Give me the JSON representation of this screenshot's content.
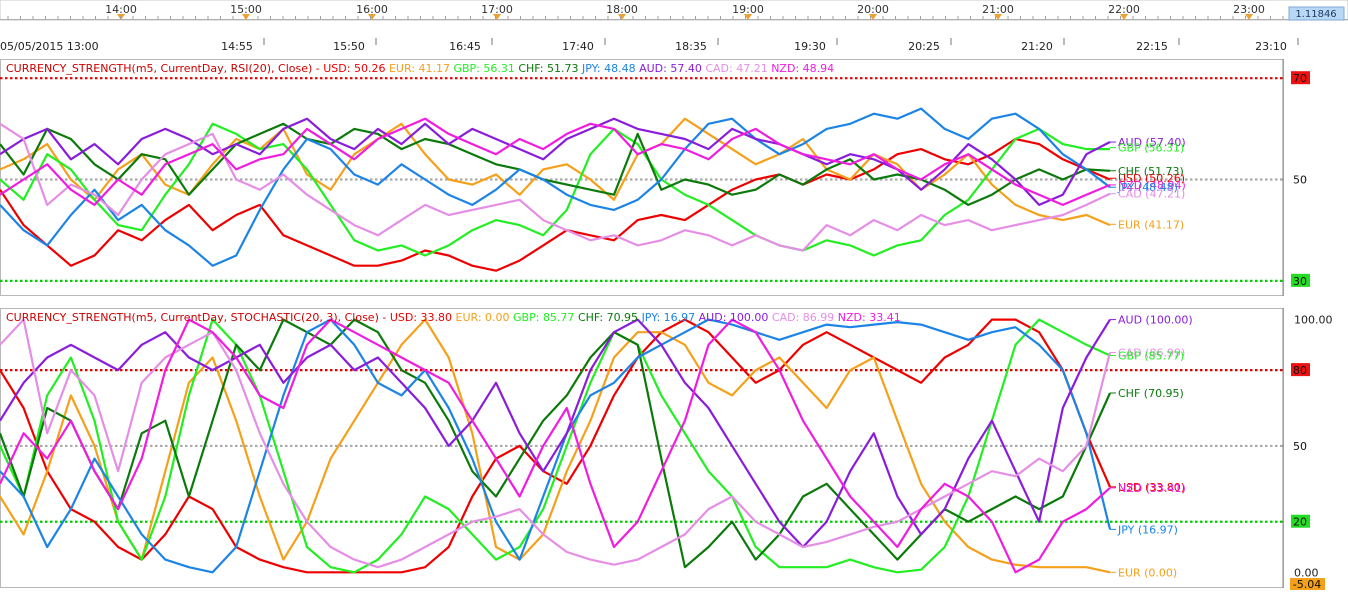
{
  "timeline": {
    "ticks": [
      "14:00",
      "15:00",
      "16:00",
      "17:00",
      "18:00",
      "19:00",
      "20:00",
      "21:00",
      "22:00",
      "23:00"
    ],
    "price_badge": "1.11846"
  },
  "time_axis": {
    "labels": [
      "05/05/2015 13:00",
      "14:55",
      "15:50",
      "16:45",
      "17:40",
      "18:35",
      "19:30",
      "20:25",
      "21:20",
      "22:15",
      "23:10"
    ]
  },
  "colors": {
    "USD": "#ee0000",
    "EUR": "#f5a01a",
    "GBP": "#22ee22",
    "CHF": "#0b7a0b",
    "JPY": "#1c84e6",
    "AUD": "#8a1cdc",
    "CAD": "#e58ee5",
    "NZD": "#f01ce0",
    "overbought_line": "#dd0000",
    "oversold_line": "#00cc00",
    "mid_line": "#aaaaaa"
  },
  "chart_data": [
    {
      "type": "line",
      "title": "CURRENCY_STRENGTH(m5, CurrentDay, RSI(20), Close)",
      "header_values": [
        {
          "label": "USD: 50.26",
          "key": "USD"
        },
        {
          "label": "EUR: 41.17",
          "key": "EUR"
        },
        {
          "label": "GBP: 56.31",
          "key": "GBP"
        },
        {
          "label": "CHF: 51.73",
          "key": "CHF"
        },
        {
          "label": "JPY: 48.48",
          "key": "JPY"
        },
        {
          "label": "AUD: 57.40",
          "key": "AUD"
        },
        {
          "label": "CAD: 47.21",
          "key": "CAD"
        },
        {
          "label": "NZD: 48.94",
          "key": "NZD"
        }
      ],
      "ylim": [
        28,
        73
      ],
      "levels": [
        {
          "value": 70,
          "label": "70",
          "kind": "overbought"
        },
        {
          "value": 50,
          "label": "50",
          "kind": "mid"
        },
        {
          "value": 30,
          "label": "30",
          "kind": "oversold"
        }
      ],
      "end_labels": [
        {
          "key": "AUD",
          "text": "AUD (57.40)",
          "value": 57.4
        },
        {
          "key": "GBP",
          "text": "GBP (56.31)",
          "value": 56.31
        },
        {
          "key": "CHF",
          "text": "CHF (51.73)",
          "value": 51.73
        },
        {
          "key": "USD",
          "text": "USD (50.26)",
          "value": 50.26
        },
        {
          "key": "NZD",
          "text": "NZD (48.94)",
          "value": 48.94
        },
        {
          "key": "JPY",
          "text": "JPY (48.48)",
          "value": 48.48
        },
        {
          "key": "CAD",
          "text": "CAD (47.21)",
          "value": 47.21
        },
        {
          "key": "EUR",
          "text": "EUR (41.17)",
          "value": 41.17
        }
      ],
      "series": [
        {
          "name": "USD",
          "values": [
            48,
            41,
            37,
            33,
            35,
            40,
            38,
            42,
            45,
            40,
            43,
            45,
            39,
            37,
            35,
            33,
            33,
            34,
            36,
            35,
            33,
            32,
            34,
            37,
            40,
            39,
            38,
            42,
            43,
            42,
            45,
            48,
            50,
            51,
            49,
            51,
            50,
            52,
            55,
            56,
            54,
            53,
            55,
            58,
            57,
            54,
            52,
            50
          ]
        },
        {
          "name": "EUR",
          "values": [
            52,
            54,
            57,
            50,
            46,
            52,
            55,
            49,
            47,
            53,
            58,
            56,
            60,
            51,
            48,
            55,
            58,
            61,
            55,
            50,
            49,
            51,
            47,
            52,
            53,
            50,
            46,
            55,
            57,
            62,
            59,
            56,
            53,
            55,
            58,
            52,
            50,
            55,
            53,
            48,
            51,
            55,
            49,
            45,
            43,
            42,
            43,
            41
          ]
        },
        {
          "name": "GBP",
          "values": [
            50,
            46,
            55,
            52,
            46,
            41,
            40,
            47,
            53,
            61,
            59,
            56,
            57,
            52,
            45,
            38,
            36,
            37,
            35,
            37,
            40,
            42,
            41,
            39,
            44,
            55,
            60,
            57,
            50,
            47,
            45,
            42,
            39,
            37,
            36,
            38,
            37,
            35,
            37,
            38,
            43,
            46,
            52,
            58,
            60,
            57,
            56,
            56
          ]
        },
        {
          "name": "CHF",
          "values": [
            57,
            51,
            60,
            58,
            53,
            50,
            55,
            54,
            47,
            52,
            57,
            59,
            61,
            58,
            57,
            60,
            59,
            56,
            58,
            57,
            55,
            53,
            52,
            50,
            49,
            48,
            47,
            59,
            48,
            50,
            49,
            47,
            48,
            51,
            49,
            52,
            54,
            50,
            51,
            50,
            48,
            45,
            47,
            50,
            52,
            50,
            52,
            51.73
          ]
        },
        {
          "name": "JPY",
          "values": [
            45,
            40,
            37,
            43,
            48,
            42,
            45,
            40,
            37,
            33,
            35,
            44,
            52,
            58,
            56,
            51,
            49,
            53,
            50,
            47,
            45,
            48,
            52,
            50,
            47,
            45,
            44,
            46,
            50,
            56,
            61,
            62,
            58,
            55,
            57,
            60,
            61,
            63,
            62,
            64,
            60,
            58,
            62,
            63,
            60,
            55,
            52,
            48.48
          ]
        },
        {
          "name": "AUD",
          "values": [
            55,
            58,
            60,
            54,
            57,
            53,
            58,
            60,
            58,
            55,
            57,
            55,
            60,
            62,
            58,
            56,
            60,
            57,
            61,
            57,
            60,
            58,
            56,
            54,
            58,
            60,
            62,
            60,
            59,
            58,
            56,
            60,
            58,
            57,
            55,
            53,
            55,
            54,
            52,
            48,
            52,
            57,
            54,
            50,
            45,
            47,
            55,
            57.4
          ]
        },
        {
          "name": "CAD",
          "values": [
            61,
            58,
            45,
            49,
            47,
            43,
            50,
            55,
            57,
            59,
            50,
            48,
            51,
            47,
            44,
            41,
            39,
            42,
            45,
            43,
            44,
            45,
            46,
            42,
            40,
            38,
            39,
            37,
            38,
            40,
            39,
            37,
            39,
            37,
            36,
            41,
            39,
            42,
            40,
            43,
            41,
            42,
            40,
            41,
            42,
            43,
            45,
            47.21
          ]
        },
        {
          "name": "NZD",
          "values": [
            47,
            50,
            53,
            48,
            45,
            50,
            47,
            53,
            55,
            57,
            52,
            54,
            55,
            60,
            57,
            54,
            58,
            60,
            62,
            59,
            57,
            55,
            58,
            56,
            59,
            61,
            60,
            55,
            57,
            56,
            54,
            58,
            60,
            57,
            55,
            54,
            53,
            55,
            52,
            50,
            53,
            55,
            52,
            49,
            47,
            45,
            47,
            48.94
          ]
        }
      ]
    },
    {
      "type": "line",
      "title": "CURRENCY_STRENGTH(m5, CurrentDay, STOCHASTIC(20, 3), Close)",
      "header_values": [
        {
          "label": "USD: 33.80",
          "key": "USD"
        },
        {
          "label": "EUR: 0.00",
          "key": "EUR"
        },
        {
          "label": "GBP: 85.77",
          "key": "GBP"
        },
        {
          "label": "CHF: 70.95",
          "key": "CHF"
        },
        {
          "label": "JPY: 16.97",
          "key": "JPY"
        },
        {
          "label": "AUD: 100.00",
          "key": "AUD"
        },
        {
          "label": "CAD: 86.99",
          "key": "CAD"
        },
        {
          "label": "NZD: 33.41",
          "key": "NZD"
        }
      ],
      "ylim": [
        -5.04,
        103
      ],
      "levels": [
        {
          "value": 80,
          "label": "80",
          "kind": "overbought"
        },
        {
          "value": 50,
          "label": "50",
          "kind": "mid"
        },
        {
          "value": 20,
          "label": "20",
          "kind": "oversold"
        }
      ],
      "y_tick_labels": [
        {
          "value": 100,
          "label": "100.00"
        },
        {
          "value": 0,
          "label": "0.00"
        }
      ],
      "bottom_badge": "-5.04",
      "end_labels": [
        {
          "key": "AUD",
          "text": "AUD (100.00)",
          "value": 100
        },
        {
          "key": "CAD",
          "text": "CAD (86.99)",
          "value": 86.99
        },
        {
          "key": "GBP",
          "text": "GBP (85.77)",
          "value": 85.77
        },
        {
          "key": "CHF",
          "text": "CHF (70.95)",
          "value": 70.95
        },
        {
          "key": "USD",
          "text": "USD (33.80)",
          "value": 33.8
        },
        {
          "key": "NZD",
          "text": "NZD (33.41)",
          "value": 33.41
        },
        {
          "key": "JPY",
          "text": "JPY (16.97)",
          "value": 16.97
        },
        {
          "key": "EUR",
          "text": "EUR (0.00)",
          "value": 0
        }
      ],
      "series": [
        {
          "name": "USD",
          "values": [
            80,
            65,
            40,
            25,
            20,
            10,
            5,
            15,
            30,
            25,
            10,
            5,
            2,
            0,
            0,
            0,
            0,
            0,
            2,
            10,
            30,
            45,
            50,
            40,
            35,
            50,
            70,
            85,
            95,
            100,
            95,
            85,
            75,
            80,
            90,
            95,
            90,
            85,
            80,
            75,
            85,
            90,
            100,
            100,
            95,
            80,
            55,
            33.8
          ]
        },
        {
          "name": "EUR",
          "values": [
            30,
            15,
            40,
            70,
            50,
            20,
            5,
            40,
            75,
            85,
            60,
            30,
            5,
            20,
            45,
            60,
            75,
            90,
            100,
            85,
            55,
            10,
            5,
            15,
            40,
            60,
            85,
            95,
            95,
            90,
            75,
            70,
            80,
            85,
            75,
            65,
            80,
            85,
            60,
            35,
            20,
            10,
            5,
            3,
            2,
            2,
            2,
            0
          ]
        },
        {
          "name": "GBP",
          "values": [
            50,
            30,
            70,
            85,
            60,
            20,
            5,
            30,
            70,
            100,
            90,
            70,
            40,
            10,
            2,
            0,
            5,
            15,
            30,
            25,
            15,
            5,
            10,
            25,
            50,
            75,
            95,
            90,
            70,
            55,
            40,
            30,
            10,
            2,
            2,
            2,
            5,
            2,
            0,
            1,
            10,
            30,
            60,
            90,
            100,
            95,
            90,
            85.77
          ]
        },
        {
          "name": "CHF",
          "values": [
            55,
            30,
            65,
            60,
            40,
            25,
            55,
            60,
            30,
            60,
            90,
            80,
            100,
            95,
            90,
            100,
            95,
            80,
            75,
            60,
            40,
            30,
            45,
            60,
            70,
            85,
            95,
            90,
            45,
            2,
            10,
            20,
            5,
            15,
            30,
            35,
            25,
            15,
            5,
            15,
            25,
            20,
            25,
            30,
            25,
            30,
            50,
            70.95
          ]
        },
        {
          "name": "JPY",
          "values": [
            40,
            30,
            10,
            25,
            45,
            30,
            15,
            5,
            2,
            0,
            10,
            40,
            70,
            95,
            100,
            90,
            75,
            70,
            80,
            65,
            45,
            20,
            5,
            30,
            55,
            70,
            75,
            85,
            90,
            95,
            100,
            98,
            95,
            92,
            95,
            98,
            97,
            98,
            99,
            98,
            95,
            92,
            95,
            97,
            90,
            80,
            55,
            16.97
          ]
        },
        {
          "name": "AUD",
          "values": [
            60,
            75,
            85,
            90,
            85,
            80,
            90,
            95,
            85,
            80,
            85,
            90,
            75,
            85,
            90,
            80,
            85,
            75,
            65,
            50,
            60,
            75,
            55,
            40,
            55,
            80,
            95,
            100,
            90,
            75,
            65,
            50,
            35,
            20,
            10,
            20,
            40,
            55,
            30,
            15,
            25,
            45,
            60,
            40,
            20,
            65,
            85,
            100
          ]
        },
        {
          "name": "CAD",
          "values": [
            90,
            100,
            55,
            80,
            70,
            40,
            75,
            85,
            90,
            95,
            80,
            55,
            35,
            20,
            10,
            5,
            2,
            5,
            10,
            15,
            20,
            22,
            25,
            15,
            8,
            5,
            3,
            5,
            10,
            15,
            25,
            30,
            20,
            15,
            10,
            12,
            15,
            18,
            20,
            25,
            30,
            35,
            40,
            38,
            45,
            40,
            50,
            86.99
          ]
        },
        {
          "name": "NZD",
          "values": [
            35,
            55,
            45,
            60,
            40,
            25,
            45,
            80,
            100,
            95,
            85,
            70,
            65,
            90,
            100,
            95,
            90,
            85,
            80,
            75,
            60,
            45,
            30,
            50,
            65,
            35,
            10,
            20,
            40,
            60,
            90,
            100,
            95,
            80,
            60,
            45,
            30,
            20,
            10,
            25,
            35,
            30,
            20,
            0,
            5,
            20,
            25,
            33.41
          ]
        }
      ]
    }
  ]
}
